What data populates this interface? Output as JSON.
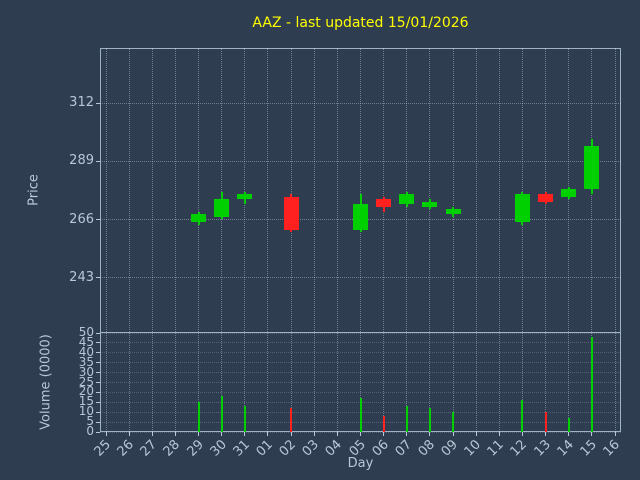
{
  "colors": {
    "background": "#2e3d4f",
    "title": "#ffff00",
    "text": "#b6c8d8",
    "spine": "#9fb3c8",
    "grid": "#dbe6f0",
    "up": "#00d000",
    "down": "#ff2020"
  },
  "chart_data": {
    "type": "candlestick",
    "title": "AAZ - last updated 15/01/2026",
    "xlabel": "Day",
    "ylabel": "Price",
    "volume_ylabel": "Volume (0000)",
    "x_categories": [
      "25",
      "26",
      "27",
      "28",
      "29",
      "30",
      "31",
      "01",
      "02",
      "03",
      "04",
      "05",
      "06",
      "07",
      "08",
      "09",
      "10",
      "11",
      "12",
      "13",
      "14",
      "15",
      "16"
    ],
    "price_ticks": [
      243,
      266,
      289,
      312
    ],
    "price_axis_range": [
      221,
      334
    ],
    "volume_ticks": [
      0,
      5,
      10,
      15,
      20,
      25,
      30,
      35,
      40,
      45,
      50
    ],
    "volume_axis_range": [
      0,
      50
    ],
    "grid": "dotted",
    "legend": "none",
    "candles": [
      {
        "day": "29",
        "open": 265,
        "high": 269,
        "low": 264,
        "close": 268,
        "volume": 15
      },
      {
        "day": "30",
        "open": 267,
        "high": 277,
        "low": 266,
        "close": 274,
        "volume": 18
      },
      {
        "day": "31",
        "open": 274,
        "high": 277,
        "low": 272,
        "close": 276,
        "volume": 13
      },
      {
        "day": "02",
        "open": 275,
        "high": 276,
        "low": 261,
        "close": 262,
        "volume": 12
      },
      {
        "day": "05",
        "open": 262,
        "high": 276,
        "low": 261,
        "close": 272,
        "volume": 17
      },
      {
        "day": "06",
        "open": 274,
        "high": 275,
        "low": 269,
        "close": 271,
        "volume": 8
      },
      {
        "day": "07",
        "open": 272,
        "high": 277,
        "low": 271,
        "close": 276,
        "volume": 13
      },
      {
        "day": "08",
        "open": 271,
        "high": 274,
        "low": 270,
        "close": 273,
        "volume": 12
      },
      {
        "day": "09",
        "open": 268,
        "high": 271,
        "low": 267,
        "close": 270,
        "volume": 10
      },
      {
        "day": "12",
        "open": 265,
        "high": 277,
        "low": 264,
        "close": 276,
        "volume": 16
      },
      {
        "day": "13",
        "open": 276,
        "high": 277,
        "low": 272,
        "close": 273,
        "volume": 10
      },
      {
        "day": "14",
        "open": 275,
        "high": 279,
        "low": 274,
        "close": 278,
        "volume": 7
      },
      {
        "day": "15",
        "open": 278,
        "high": 298,
        "low": 276,
        "close": 295,
        "volume": 48
      }
    ]
  }
}
